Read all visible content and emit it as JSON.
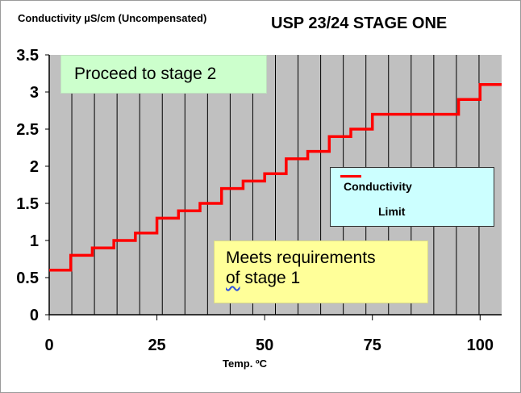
{
  "chart_data": {
    "type": "line",
    "title": "USP 23/24 STAGE ONE",
    "ylabel": "Conductivity µS/cm (Uncompensated)",
    "xlabel": "Temp. ºC",
    "xlim": [
      0,
      105
    ],
    "ylim": [
      0,
      3.5
    ],
    "x_ticks": [
      "0",
      "25",
      "50",
      "75",
      "100"
    ],
    "y_ticks": [
      "0",
      "0.5",
      "1",
      "1.5",
      "2",
      "2.5",
      "3",
      "3.5"
    ],
    "grid": true,
    "legend_position": "right-middle",
    "series": [
      {
        "name": "Conductivity Limit",
        "color": "#ff0000",
        "step": true,
        "x": [
          0,
          5,
          10,
          15,
          20,
          25,
          30,
          35,
          40,
          45,
          50,
          55,
          60,
          65,
          70,
          75,
          80,
          85,
          90,
          95,
          100
        ],
        "y": [
          0.6,
          0.8,
          0.9,
          1.0,
          1.1,
          1.3,
          1.4,
          1.5,
          1.7,
          1.8,
          1.9,
          2.1,
          2.2,
          2.4,
          2.5,
          2.7,
          2.7,
          2.7,
          2.7,
          2.9,
          3.1
        ]
      }
    ],
    "annotations": [
      "Proceed to stage 2",
      "Meets requirements",
      "of stage 1"
    ]
  },
  "labels": {
    "ylabel_title": "Conductivity µS/cm (Uncompensated)",
    "main_title": "USP 23/24 STAGE ONE",
    "xlabel": "Temp. ºC",
    "proceed": "Proceed to stage 2",
    "meets_line1": "Meets requirements",
    "meets_line2_word": "of",
    "meets_line2_rest": " stage 1",
    "legend_line1": "Conductivity",
    "legend_line2": "Limit"
  },
  "colors": {
    "plot_bg": "#c0c0c0",
    "grid": "#000000",
    "series": "#ff0000",
    "proceed_box": "#ccffcc",
    "meets_box": "#ffff99",
    "legend_box": "#ccffff"
  }
}
